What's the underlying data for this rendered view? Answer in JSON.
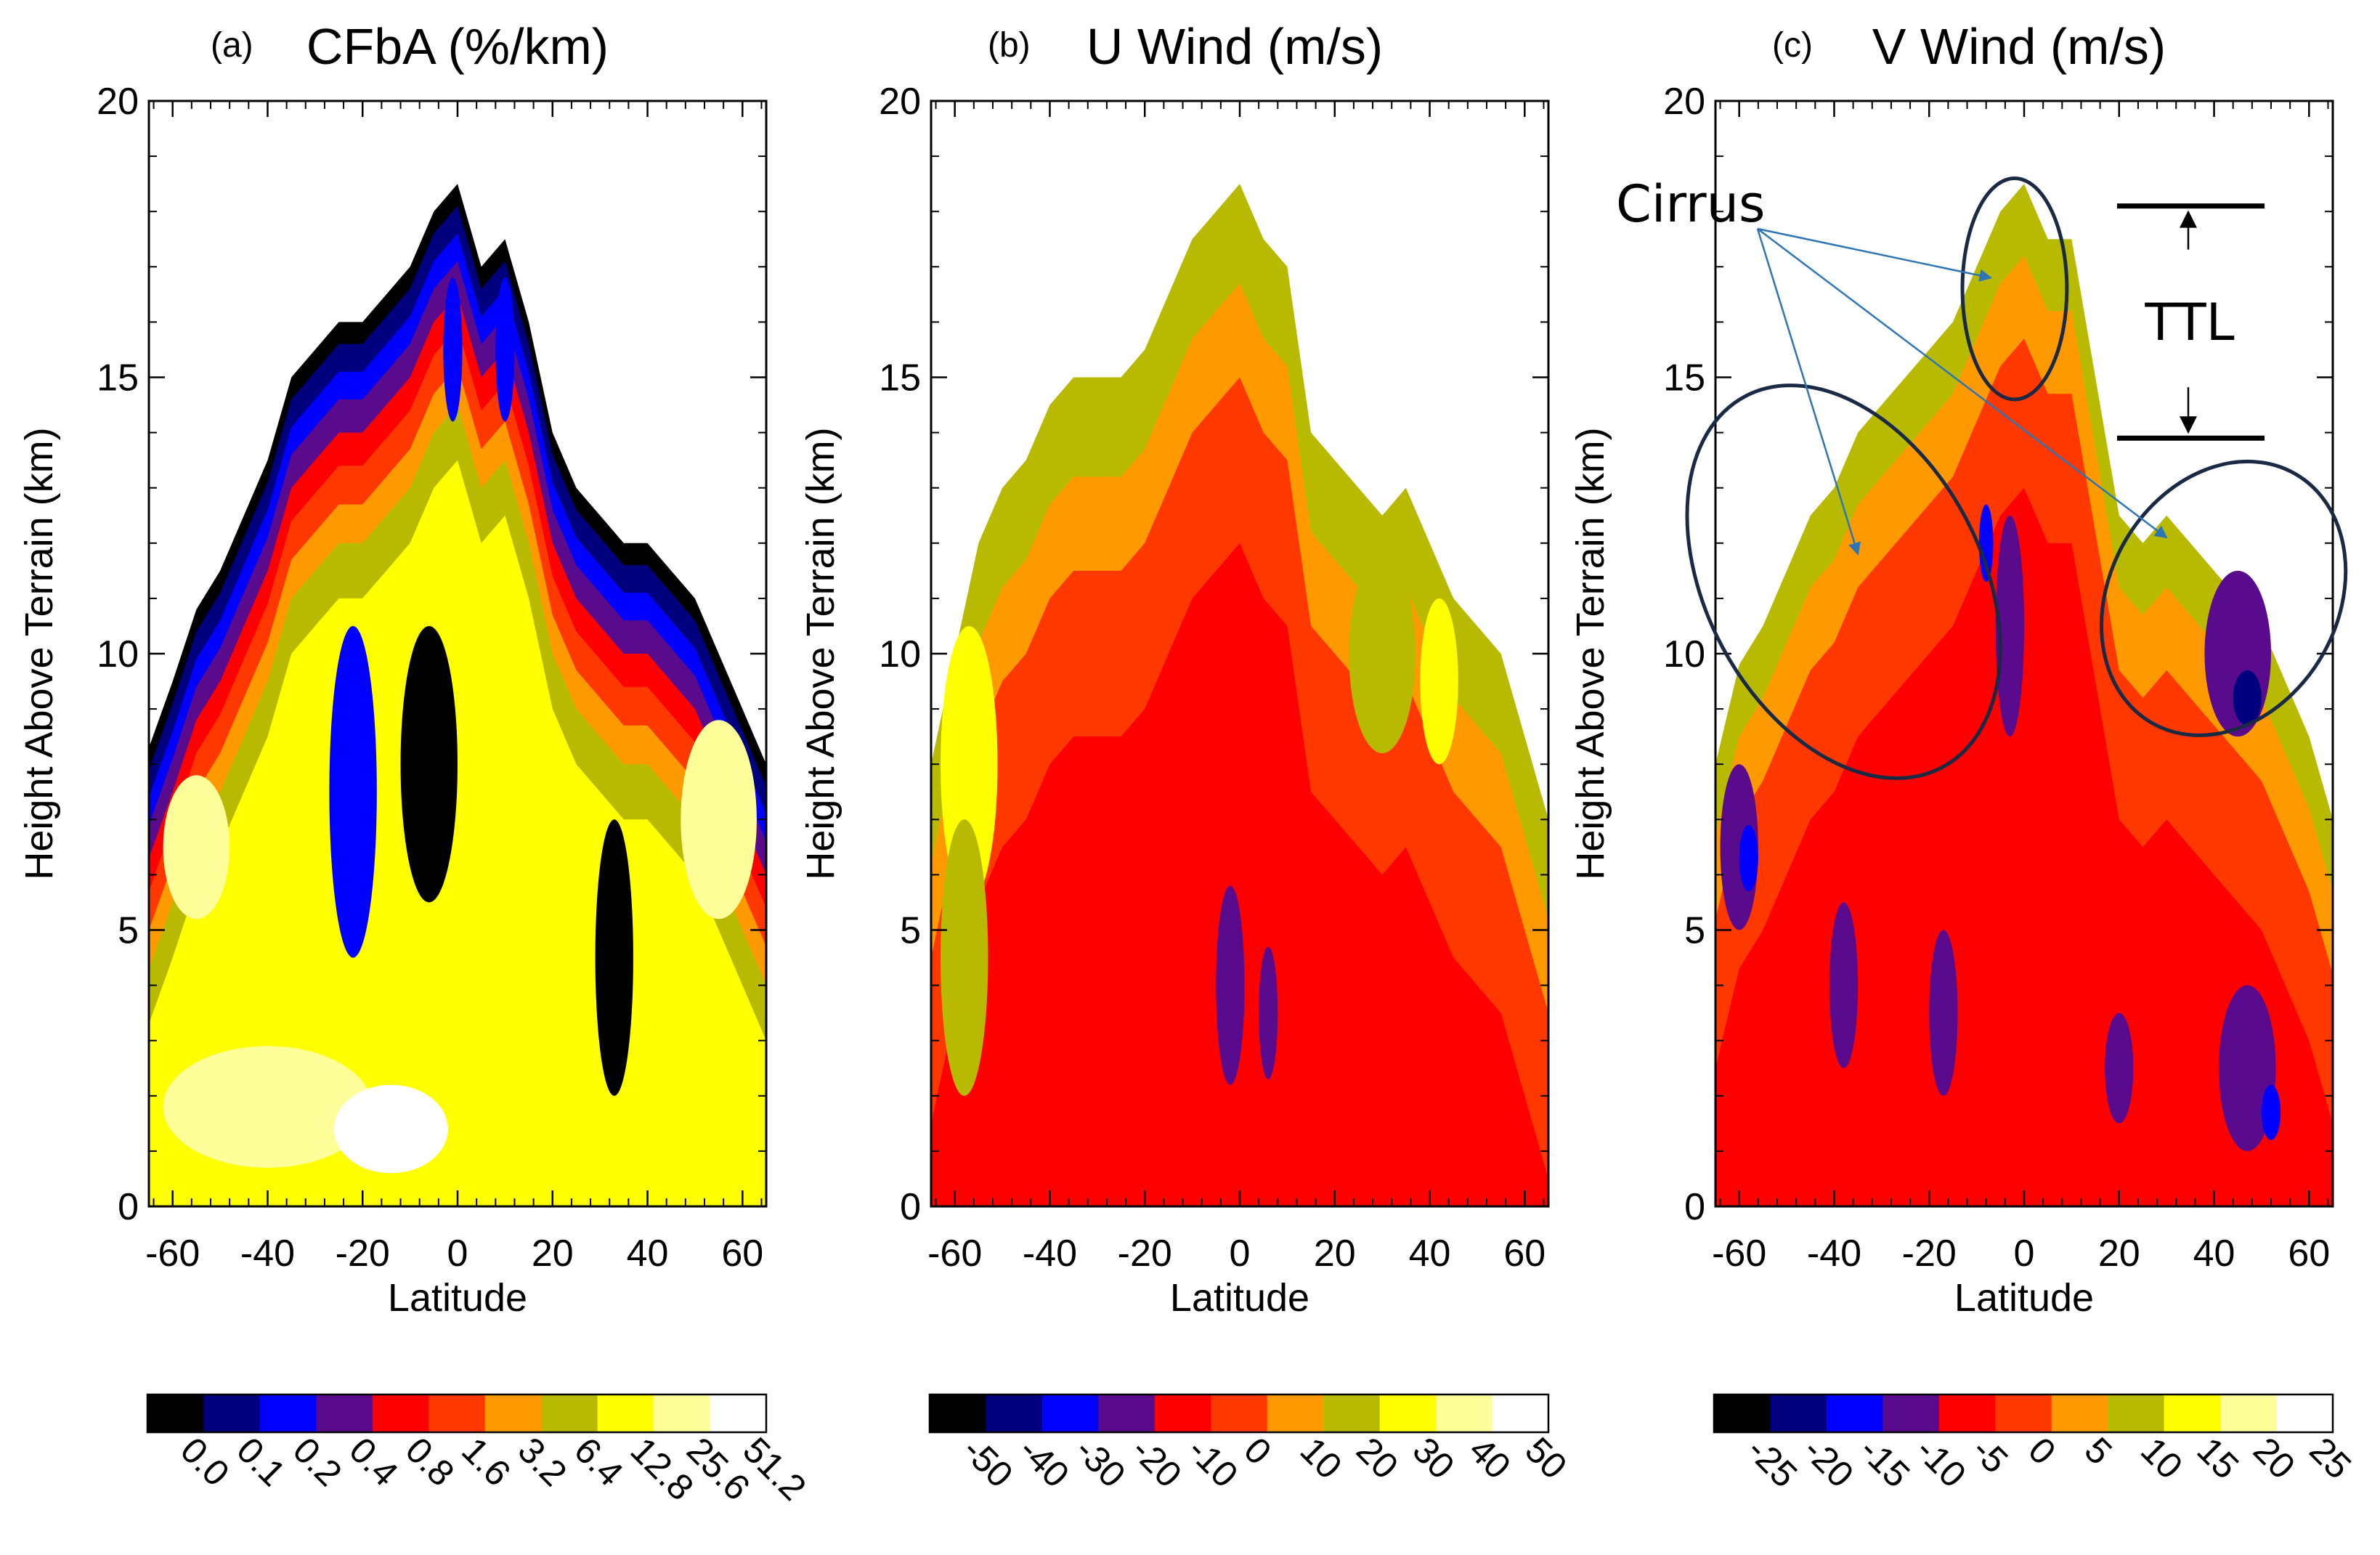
{
  "chart_data": [
    {
      "type": "heatmap",
      "panel_label": "(a)",
      "title": "CFbA (%/km)",
      "xlabel": "Latitude",
      "ylabel": "Height Above Terrain (km)",
      "xlim": [
        -65,
        65
      ],
      "ylim": [
        0,
        20
      ],
      "xticks": [
        "-60",
        "-40",
        "-20",
        "0",
        "20",
        "40",
        "60"
      ],
      "yticks": [
        "0",
        "5",
        "10",
        "15",
        "20"
      ],
      "colorbar": {
        "colors": [
          "#000000",
          "#00007f",
          "#0000ff",
          "#5a0a8c",
          "#ff0000",
          "#ff3800",
          "#ff9900",
          "#b7ba00",
          "#ffff00",
          "#ffff99",
          "#ffffff"
        ],
        "labels": [
          "0.0",
          "0.1",
          "0.2",
          "0.4",
          "0.8",
          "1.6",
          "3.2",
          "6.4",
          "12.8",
          "25.6",
          "51.2"
        ]
      },
      "envelope_top_km": [
        [
          -65,
          8.3
        ],
        [
          -60,
          9.5
        ],
        [
          -55,
          10.8
        ],
        [
          -50,
          11.5
        ],
        [
          -45,
          12.5
        ],
        [
          -40,
          13.5
        ],
        [
          -35,
          15
        ],
        [
          -30,
          15.5
        ],
        [
          -25,
          16
        ],
        [
          -20,
          16
        ],
        [
          -15,
          16.5
        ],
        [
          -10,
          17
        ],
        [
          -5,
          18
        ],
        [
          0,
          18.5
        ],
        [
          5,
          17
        ],
        [
          10,
          17.5
        ],
        [
          15,
          16
        ],
        [
          20,
          14
        ],
        [
          25,
          13
        ],
        [
          30,
          12.5
        ],
        [
          35,
          12
        ],
        [
          40,
          12
        ],
        [
          45,
          11.5
        ],
        [
          50,
          11
        ],
        [
          55,
          10
        ],
        [
          60,
          9
        ],
        [
          65,
          8
        ]
      ],
      "bands": [
        {
          "level": "0.1",
          "inset_km": 0.4
        },
        {
          "level": "0.2",
          "inset_km": 0.9
        },
        {
          "level": "0.4",
          "inset_km": 1.4
        },
        {
          "level": "0.8",
          "inset_km": 2.0
        },
        {
          "level": "1.6",
          "inset_km": 2.6
        },
        {
          "level": "3.2",
          "inset_km": 3.3
        },
        {
          "level": "6.4",
          "inset_km": 4.0
        },
        {
          "level": "12.8",
          "inset_km": 5.0
        }
      ],
      "features": [
        {
          "kind": "core",
          "level": "0.0",
          "lat": -6,
          "km": 8,
          "rlat": 6,
          "rkm": 2.5
        },
        {
          "kind": "core",
          "level": "0.2",
          "lat": -22,
          "km": 7.5,
          "rlat": 5,
          "rkm": 3
        },
        {
          "kind": "core",
          "level": "0.0",
          "lat": 33,
          "km": 4.5,
          "rlat": 4,
          "rkm": 2.5
        },
        {
          "kind": "core",
          "level": "0.2",
          "lat": 10,
          "km": 15.5,
          "rlat": 2,
          "rkm": 1.3
        },
        {
          "kind": "core",
          "level": "0.2",
          "lat": -1,
          "km": 15.5,
          "rlat": 2,
          "rkm": 1.3
        },
        {
          "kind": "core",
          "level": "25.6",
          "lat": -40,
          "km": 1.8,
          "rlat": 22,
          "rkm": 1.1
        },
        {
          "kind": "core",
          "level": "51.2",
          "lat": -14,
          "km": 1.4,
          "rlat": 12,
          "rkm": 0.8
        },
        {
          "kind": "core",
          "level": "25.6",
          "lat": 55,
          "km": 7,
          "rlat": 8,
          "rkm": 1.8
        },
        {
          "kind": "core",
          "level": "25.6",
          "lat": -55,
          "km": 6.5,
          "rlat": 7,
          "rkm": 1.3
        },
        {
          "kind": "core",
          "level": "12.8",
          "lat": 2,
          "km": 5,
          "rlat": 5,
          "rkm": 1
        }
      ]
    },
    {
      "type": "heatmap",
      "panel_label": "(b)",
      "title": "U Wind (m/s)",
      "xlabel": "Latitude",
      "ylabel": "Height Above Terrain (km)",
      "xlim": [
        -65,
        65
      ],
      "ylim": [
        0,
        20
      ],
      "xticks": [
        "-60",
        "-40",
        "-20",
        "0",
        "20",
        "40",
        "60"
      ],
      "yticks": [
        "0",
        "5",
        "10",
        "15",
        "20"
      ],
      "colorbar": {
        "colors": [
          "#000000",
          "#00007f",
          "#0000ff",
          "#5a0a8c",
          "#ff0000",
          "#ff3800",
          "#ff9900",
          "#b7ba00",
          "#ffff00",
          "#ffff99",
          "#ffffff"
        ],
        "labels": [
          "-50",
          "-40",
          "-30",
          "-20",
          "-10",
          "0",
          "10",
          "20",
          "30",
          "40",
          "50"
        ]
      },
      "envelope_top_km": [
        [
          -65,
          8
        ],
        [
          -60,
          10
        ],
        [
          -55,
          12
        ],
        [
          -50,
          13
        ],
        [
          -45,
          13.5
        ],
        [
          -40,
          14.5
        ],
        [
          -35,
          15
        ],
        [
          -30,
          15
        ],
        [
          -25,
          15
        ],
        [
          -20,
          15.5
        ],
        [
          -15,
          16.5
        ],
        [
          -10,
          17.5
        ],
        [
          -5,
          18
        ],
        [
          0,
          18.5
        ],
        [
          5,
          17.5
        ],
        [
          10,
          17
        ],
        [
          15,
          14
        ],
        [
          20,
          13.5
        ],
        [
          25,
          13
        ],
        [
          30,
          12.5
        ],
        [
          35,
          13
        ],
        [
          40,
          12
        ],
        [
          45,
          11
        ],
        [
          50,
          10.5
        ],
        [
          55,
          10
        ],
        [
          60,
          8.5
        ],
        [
          65,
          7
        ]
      ],
      "bands": [
        {
          "level": "20",
          "inset_km": 0.8
        },
        {
          "level": "10",
          "inset_km": 1.8
        },
        {
          "level": "0",
          "inset_km": 3.5
        },
        {
          "level": "-10",
          "inset_km": 6.5
        }
      ],
      "features": [
        {
          "kind": "core",
          "level": "30",
          "lat": -57,
          "km": 8,
          "rlat": 6,
          "rkm": 2.5
        },
        {
          "kind": "core",
          "level": "20",
          "lat": -58,
          "km": 4.5,
          "rlat": 5,
          "rkm": 2.5
        },
        {
          "kind": "core",
          "level": "-20",
          "lat": -2,
          "km": 4,
          "rlat": 3,
          "rkm": 1.8
        },
        {
          "kind": "core",
          "level": "-20",
          "lat": 6,
          "km": 3.5,
          "rlat": 2,
          "rkm": 1.2
        },
        {
          "kind": "core",
          "level": "30",
          "lat": 42,
          "km": 9.5,
          "rlat": 4,
          "rkm": 1.5
        },
        {
          "kind": "core",
          "level": "20",
          "lat": 30,
          "km": 10,
          "rlat": 7,
          "rkm": 1.8
        }
      ]
    },
    {
      "type": "heatmap",
      "panel_label": "(c)",
      "title": "V Wind (m/s)",
      "xlabel": "Latitude",
      "ylabel": "Height Above Terrain (km)",
      "xlim": [
        -65,
        65
      ],
      "ylim": [
        0,
        20
      ],
      "xticks": [
        "-60",
        "-40",
        "-20",
        "0",
        "20",
        "40",
        "60"
      ],
      "yticks": [
        "0",
        "5",
        "10",
        "15",
        "20"
      ],
      "colorbar": {
        "colors": [
          "#000000",
          "#00007f",
          "#0000ff",
          "#5a0a8c",
          "#ff0000",
          "#ff3800",
          "#ff9900",
          "#b7ba00",
          "#ffff00",
          "#ffff99",
          "#ffffff"
        ],
        "labels": [
          "-25",
          "-20",
          "-15",
          "-10",
          "-5",
          "0",
          "5",
          "10",
          "15",
          "20",
          "25"
        ]
      },
      "envelope_top_km": [
        [
          -65,
          8
        ],
        [
          -60,
          9.8
        ],
        [
          -55,
          10.5
        ],
        [
          -50,
          11.5
        ],
        [
          -45,
          12.5
        ],
        [
          -40,
          13
        ],
        [
          -35,
          14
        ],
        [
          -30,
          14.5
        ],
        [
          -25,
          15
        ],
        [
          -20,
          15.5
        ],
        [
          -15,
          16
        ],
        [
          -10,
          17
        ],
        [
          -5,
          18
        ],
        [
          0,
          18.5
        ],
        [
          5,
          17.5
        ],
        [
          10,
          17.5
        ],
        [
          15,
          15
        ],
        [
          20,
          12.5
        ],
        [
          25,
          12
        ],
        [
          30,
          12.5
        ],
        [
          35,
          12
        ],
        [
          40,
          11.5
        ],
        [
          45,
          11
        ],
        [
          50,
          10.5
        ],
        [
          55,
          9.5
        ],
        [
          60,
          8.5
        ],
        [
          65,
          7
        ]
      ],
      "bands": [
        {
          "level": "10",
          "inset_km": 0.5
        },
        {
          "level": "5",
          "inset_km": 1.3
        },
        {
          "level": "0",
          "inset_km": 2.8
        },
        {
          "level": "-5",
          "inset_km": 5.5
        }
      ],
      "features": [
        {
          "kind": "core",
          "level": "-10",
          "lat": -3,
          "km": 10.5,
          "rlat": 3,
          "rkm": 2
        },
        {
          "kind": "core",
          "level": "-15",
          "lat": -8,
          "km": 12,
          "rlat": 1.5,
          "rkm": 0.7
        },
        {
          "kind": "core",
          "level": "-10",
          "lat": 45,
          "km": 10,
          "rlat": 7,
          "rkm": 1.5
        },
        {
          "kind": "core",
          "level": "-20",
          "lat": 47,
          "km": 9.2,
          "rlat": 3,
          "rkm": 0.5
        },
        {
          "kind": "core",
          "level": "-10",
          "lat": -38,
          "km": 4,
          "rlat": 3,
          "rkm": 1.5
        },
        {
          "kind": "core",
          "level": "-10",
          "lat": -60,
          "km": 6.5,
          "rlat": 4,
          "rkm": 1.5
        },
        {
          "kind": "core",
          "level": "-15",
          "lat": -58,
          "km": 6.3,
          "rlat": 2,
          "rkm": 0.6
        },
        {
          "kind": "core",
          "level": "-10",
          "lat": 47,
          "km": 2.5,
          "rlat": 6,
          "rkm": 1.5
        },
        {
          "kind": "core",
          "level": "-15",
          "lat": 52,
          "km": 1.7,
          "rlat": 2,
          "rkm": 0.5
        },
        {
          "kind": "core",
          "level": "-10",
          "lat": -17,
          "km": 3.5,
          "rlat": 3,
          "rkm": 1.5
        },
        {
          "kind": "core",
          "level": "-10",
          "lat": 20,
          "km": 2.5,
          "rlat": 3,
          "rkm": 1
        }
      ],
      "annotations": {
        "cirrus_label": "Cirrus",
        "ttl_label": "TTL",
        "ttl_bracket_km": [
          13.9,
          18.1
        ],
        "ellipses": [
          {
            "name": "cirrus-ellipse-tropical",
            "lat": -2,
            "km": 16.6,
            "rlat": 11,
            "rkm": 2
          },
          {
            "name": "cirrus-ellipse-south",
            "lat": -38,
            "km": 11.3,
            "rlat": 29,
            "rkm": 3.8,
            "rotate": -28
          },
          {
            "name": "cirrus-ellipse-north",
            "lat": 42,
            "km": 11,
            "rlat": 24,
            "rkm": 2.6,
            "rotate": 30
          }
        ],
        "arrow_targets": [
          {
            "lat": -7,
            "km": 16.8
          },
          {
            "lat": -35,
            "km": 11.8
          },
          {
            "lat": 30,
            "km": 12.1
          }
        ]
      }
    }
  ]
}
